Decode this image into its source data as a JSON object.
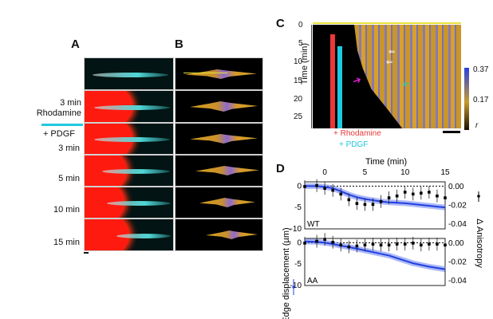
{
  "figure": {
    "panels": {
      "A": {
        "letter": "A",
        "rows": [
          {
            "label": ""
          },
          {
            "label": "3 min\nRhodamine"
          },
          {
            "label": "+ PDGF\n3 min"
          },
          {
            "label": "5 min"
          },
          {
            "label": "10 min"
          },
          {
            "label": "15 min"
          }
        ],
        "labels": {
          "rhod_time": "3 min",
          "rhod": "Rhodamine",
          "pdgf": "+ PDGF",
          "t3": "3 min",
          "t5": "5 min",
          "t10": "10 min",
          "t15": "15 min"
        }
      },
      "B": {
        "letter": "B"
      },
      "C": {
        "letter": "C",
        "ylabel": "Time (min)",
        "yticks": [
          "0",
          "5",
          "10",
          "15",
          "20",
          "25"
        ],
        "rhodamine_label": "+ Rhodamine",
        "pdgf_label": "+ PDGF",
        "colorbar": {
          "max": "0.37",
          "mid": "0.17",
          "symbol": "r"
        },
        "colors": {
          "rhodamine": "#e8383a",
          "pdgf": "#22c8e0",
          "arrow_magenta": "#e020d0",
          "arrow_cyan": "#20c8c8",
          "line_yellow": "#e6e23a"
        }
      },
      "D": {
        "letter": "D"
      }
    }
  },
  "chart_data": {
    "type": "line",
    "title": "",
    "xlabel": "Time (min)",
    "ylabel_left": "Edge displacement (µm)",
    "ylabel_right": "Δ Anisotropy",
    "xticks": [
      "0",
      "5",
      "10",
      "15"
    ],
    "xlim": [
      -2.5,
      15
    ],
    "ylim_left": [
      -10,
      1
    ],
    "ylim_right": [
      -0.045,
      0.005
    ],
    "yticks_left": [
      "0",
      "-5",
      "-10"
    ],
    "yticks_right": [
      "0.00",
      "-0.02",
      "-0.04"
    ],
    "legend": [
      {
        "name": "Edge displacement",
        "color": "#2040e0",
        "axis": "left"
      },
      {
        "name": "Δ Anisotropy",
        "color": "#000000",
        "axis": "right"
      }
    ],
    "subplots": [
      {
        "name": "WT",
        "x": [
          -2.5,
          -1,
          0,
          1,
          2,
          3,
          4,
          5,
          6,
          7,
          8,
          9,
          10,
          11,
          12,
          13,
          14,
          15
        ],
        "series": [
          {
            "name": "Edge displacement",
            "values": [
              0,
              0,
              -0.2,
              -0.5,
              -1.2,
              -2.0,
              -2.6,
              -3.0,
              -3.3,
              -3.6,
              -3.8,
              -3.9,
              -4.0,
              -4.2,
              -4.4,
              -4.6,
              -4.8,
              -5.0
            ]
          },
          {
            "name": "Δ Anisotropy",
            "values": [
              0,
              0.001,
              -0.002,
              -0.004,
              -0.008,
              -0.014,
              -0.018,
              -0.019,
              -0.019,
              -0.016,
              -0.012,
              -0.01,
              -0.006,
              -0.008,
              -0.007,
              -0.006,
              -0.01,
              -0.012
            ]
          }
        ]
      },
      {
        "name": "AA",
        "x": [
          -2.5,
          -1,
          0,
          1,
          2,
          3,
          4,
          5,
          6,
          7,
          8,
          9,
          10,
          11,
          12,
          13,
          14,
          15
        ],
        "series": [
          {
            "name": "Edge displacement",
            "values": [
              0.3,
              0.2,
              0,
              -0.3,
              -0.7,
              -1.0,
              -1.4,
              -1.8,
              -2.2,
              -2.6,
              -3.0,
              -3.6,
              -4.2,
              -4.8,
              -5.2,
              -5.6,
              -5.9,
              -6.2
            ]
          },
          {
            "name": "Δ Anisotropy",
            "values": [
              0,
              0.002,
              0.004,
              0.001,
              -0.002,
              -0.004,
              -0.003,
              -0.002,
              -0.001,
              -0.002,
              -0.002,
              -0.001,
              -0.001,
              0,
              -0.002,
              -0.001,
              -0.001,
              -0.002
            ]
          }
        ]
      }
    ]
  }
}
